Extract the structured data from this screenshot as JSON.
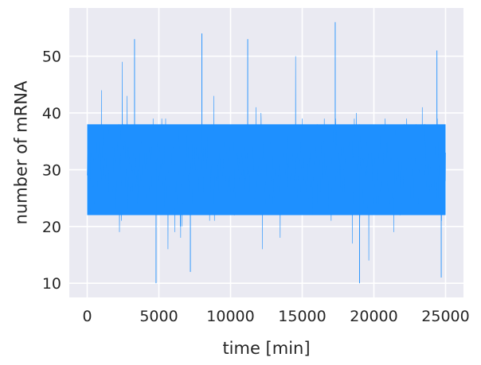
{
  "chart_data": {
    "type": "line",
    "title": "",
    "xlabel": "time [min]",
    "ylabel": "number of mRNA",
    "xlim": [
      -1250,
      26250
    ],
    "ylim": [
      7.5,
      58.5
    ],
    "xticks": [
      0,
      5000,
      10000,
      15000,
      20000,
      25000
    ],
    "xtick_labels": [
      "0",
      "5000",
      "10000",
      "15000",
      "20000",
      "25000"
    ],
    "yticks": [
      10,
      20,
      30,
      40,
      50
    ],
    "ytick_labels": [
      "10",
      "20",
      "30",
      "40",
      "50"
    ],
    "grid": true,
    "style": "seaborn-darkgrid",
    "background_color": "#eaeaf2",
    "grid_color": "#ffffff",
    "series": [
      {
        "color": "#1e90ff",
        "x_range": [
          0,
          25000
        ],
        "mean": 30,
        "dense_band": [
          22,
          38
        ],
        "observed_min": 10,
        "observed_max": 56,
        "peaks": [
          {
            "x": 3300,
            "y": 53
          },
          {
            "x": 8000,
            "y": 54
          },
          {
            "x": 11200,
            "y": 53
          },
          {
            "x": 17300,
            "y": 56
          },
          {
            "x": 24400,
            "y": 51
          }
        ],
        "troughs": [
          {
            "x": 4800,
            "y": 10
          },
          {
            "x": 7200,
            "y": 12
          },
          {
            "x": 19000,
            "y": 10
          },
          {
            "x": 24700,
            "y": 11
          }
        ]
      }
    ]
  }
}
